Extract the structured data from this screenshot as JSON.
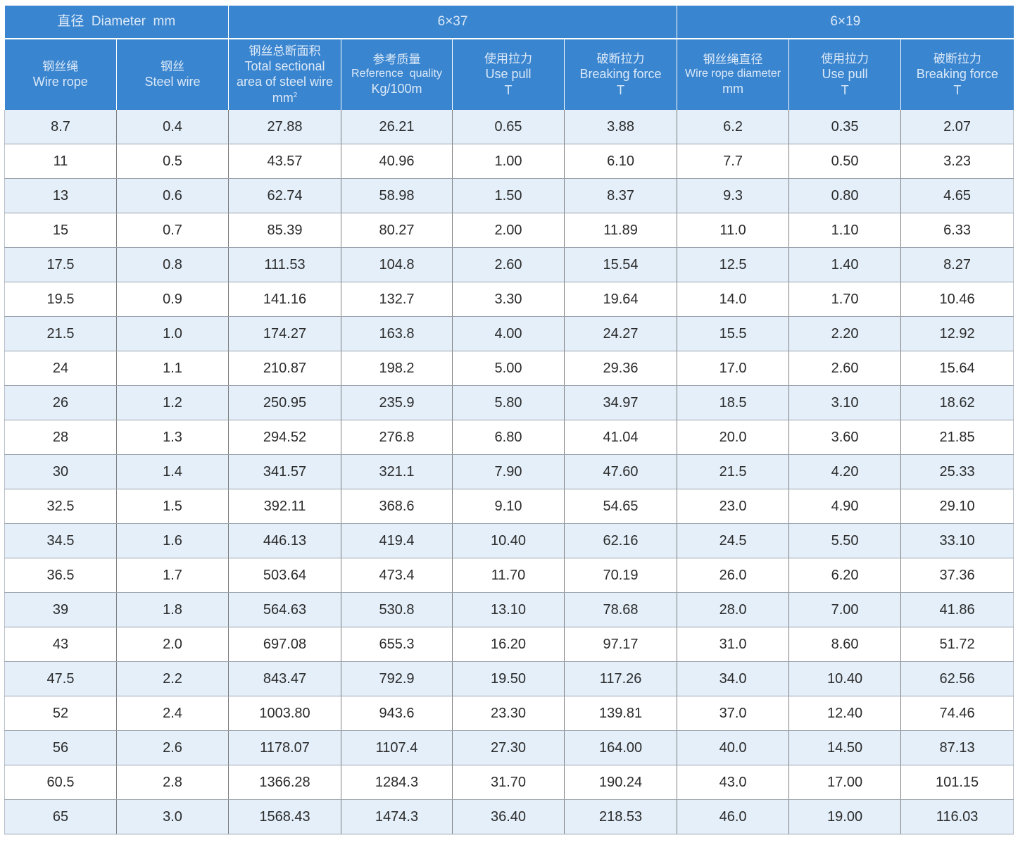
{
  "header": {
    "diameter_label": "直径  Diameter  mm",
    "group_6x37": "6×37",
    "group_6x19": "6×19",
    "columns": [
      {
        "cn": "钢丝绳",
        "en": "Wire rope",
        "unit": ""
      },
      {
        "cn": "钢丝",
        "en": "Steel wire",
        "unit": ""
      },
      {
        "cn": "钢丝总断面积",
        "en1": "Total sectional",
        "en2": "area of steel wire",
        "unit": "mm",
        "sup": "2"
      },
      {
        "cn": "参考质量",
        "en": "Reference  quality",
        "unit": "Kg/100m"
      },
      {
        "cn": "使用拉力",
        "en": "Use pull",
        "unit": "T"
      },
      {
        "cn": "破断拉力",
        "en": "Breaking force",
        "unit": "T"
      },
      {
        "cn": "钢丝绳直径",
        "en": "Wire rope diameter",
        "unit": "mm"
      },
      {
        "cn": "使用拉力",
        "en": "Use pull",
        "unit": "T"
      },
      {
        "cn": "破断拉力",
        "en": "Breaking force",
        "unit": "T"
      }
    ]
  },
  "rows": [
    [
      "8.7",
      "0.4",
      "27.88",
      "26.21",
      "0.65",
      "3.88",
      "6.2",
      "0.35",
      "2.07"
    ],
    [
      "11",
      "0.5",
      "43.57",
      "40.96",
      "1.00",
      "6.10",
      "7.7",
      "0.50",
      "3.23"
    ],
    [
      "13",
      "0.6",
      "62.74",
      "58.98",
      "1.50",
      "8.37",
      "9.3",
      "0.80",
      "4.65"
    ],
    [
      "15",
      "0.7",
      "85.39",
      "80.27",
      "2.00",
      "11.89",
      "11.0",
      "1.10",
      "6.33"
    ],
    [
      "17.5",
      "0.8",
      "111.53",
      "104.8",
      "2.60",
      "15.54",
      "12.5",
      "1.40",
      "8.27"
    ],
    [
      "19.5",
      "0.9",
      "141.16",
      "132.7",
      "3.30",
      "19.64",
      "14.0",
      "1.70",
      "10.46"
    ],
    [
      "21.5",
      "1.0",
      "174.27",
      "163.8",
      "4.00",
      "24.27",
      "15.5",
      "2.20",
      "12.92"
    ],
    [
      "24",
      "1.1",
      "210.87",
      "198.2",
      "5.00",
      "29.36",
      "17.0",
      "2.60",
      "15.64"
    ],
    [
      "26",
      "1.2",
      "250.95",
      "235.9",
      "5.80",
      "34.97",
      "18.5",
      "3.10",
      "18.62"
    ],
    [
      "28",
      "1.3",
      "294.52",
      "276.8",
      "6.80",
      "41.04",
      "20.0",
      "3.60",
      "21.85"
    ],
    [
      "30",
      "1.4",
      "341.57",
      "321.1",
      "7.90",
      "47.60",
      "21.5",
      "4.20",
      "25.33"
    ],
    [
      "32.5",
      "1.5",
      "392.11",
      "368.6",
      "9.10",
      "54.65",
      "23.0",
      "4.90",
      "29.10"
    ],
    [
      "34.5",
      "1.6",
      "446.13",
      "419.4",
      "10.40",
      "62.16",
      "24.5",
      "5.50",
      "33.10"
    ],
    [
      "36.5",
      "1.7",
      "503.64",
      "473.4",
      "11.70",
      "70.19",
      "26.0",
      "6.20",
      "37.36"
    ],
    [
      "39",
      "1.8",
      "564.63",
      "530.8",
      "13.10",
      "78.68",
      "28.0",
      "7.00",
      "41.86"
    ],
    [
      "43",
      "2.0",
      "697.08",
      "655.3",
      "16.20",
      "97.17",
      "31.0",
      "8.60",
      "51.72"
    ],
    [
      "47.5",
      "2.2",
      "843.47",
      "792.9",
      "19.50",
      "117.26",
      "34.0",
      "10.40",
      "62.56"
    ],
    [
      "52",
      "2.4",
      "1003.80",
      "943.6",
      "23.30",
      "139.81",
      "37.0",
      "12.40",
      "74.46"
    ],
    [
      "56",
      "2.6",
      "1178.07",
      "1107.4",
      "27.30",
      "164.00",
      "40.0",
      "14.50",
      "87.13"
    ],
    [
      "60.5",
      "2.8",
      "1366.28",
      "1284.3",
      "31.70",
      "190.24",
      "43.0",
      "17.00",
      "101.15"
    ],
    [
      "65",
      "3.0",
      "1568.43",
      "1474.3",
      "36.40",
      "218.53",
      "46.0",
      "19.00",
      "116.03"
    ]
  ]
}
